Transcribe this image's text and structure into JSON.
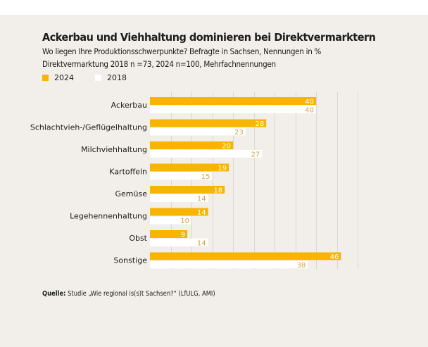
{
  "chart_data": {
    "type": "bar",
    "orientation": "horizontal",
    "title": "Ackerbau und Viehhaltung dominieren bei Direktvermarktern",
    "subtitle": [
      "Wo liegen Ihre Produktionsschwerpunkte? Befragte in Sachsen, Nennungen in %",
      "Direktvermarktung 2018 n =73, 2024 n=100, Mehrfachnennungen"
    ],
    "categories": [
      "Ackerbau",
      "Schlachtvieh-/Geflügelhaltung",
      "Milchviehhaltung",
      "Kartoffeln",
      "Gemüse",
      "Legehennenhaltung",
      "Obst",
      "Sonstige"
    ],
    "series": [
      {
        "name": "2024",
        "color": "#f7b500",
        "label_color": "#ffffff",
        "values": [
          40,
          28,
          20,
          19,
          18,
          14,
          9,
          46
        ]
      },
      {
        "name": "2018",
        "color": "#ffffff",
        "label_color": "#d8a438",
        "values": [
          40,
          23,
          27,
          15,
          14,
          10,
          14,
          38
        ]
      }
    ],
    "xlim": [
      0,
      50
    ],
    "grid_step": 5,
    "grid": true,
    "axis_ticks_shown": false,
    "legend_position": "top-left",
    "xlabel": "",
    "ylabel": ""
  },
  "source": {
    "label": "Quelle:",
    "text": " Studie „Wie regional is(s)t Sachsen?“ (LfULG, AMI)"
  },
  "colors": {
    "background": "#f2eee9",
    "gridline": "#dcd6cf",
    "text": "#1d1d1b"
  }
}
